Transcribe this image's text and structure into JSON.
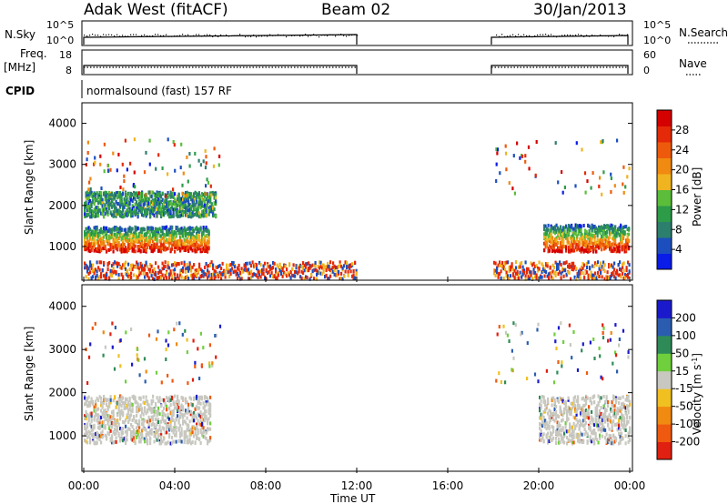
{
  "header": {
    "station": "Adak West (fitACF)",
    "beam": "Beam 02",
    "date": "30/Jan/2013"
  },
  "panels": {
    "nsky": {
      "left_label": "N.Sky",
      "right_label": "N.Search",
      "left_ticks": [
        "10^5",
        "10^0"
      ],
      "right_ticks": [
        "10^5",
        "10^0"
      ]
    },
    "freq": {
      "left_label_line1": "Freq.",
      "left_label_line2": "[MHz]",
      "right_label": "Nave",
      "left_ticks": [
        "18",
        "8"
      ],
      "right_ticks": [
        "60",
        "0"
      ]
    },
    "cpid": {
      "label": "CPID",
      "value": "normalsound (fast) 157 RF"
    }
  },
  "chart_data": [
    {
      "type": "heatmap",
      "title": "",
      "xlabel": "",
      "ylabel": "Slant Range [km]",
      "yticks": [
        "1000",
        "2000",
        "3000",
        "4000"
      ],
      "ylim": [
        180,
        4500
      ],
      "xlim": [
        0,
        24
      ],
      "data_gap_hours": [
        12,
        18
      ],
      "colorbar": {
        "label": "Power [dB]",
        "ticks": [
          "4",
          "8",
          "12",
          "16",
          "20",
          "24",
          "28"
        ],
        "colors": [
          "#0a1ce8",
          "#1c4fbd",
          "#2d7f6d",
          "#2d9c49",
          "#5bbd3a",
          "#f0b420",
          "#f08a10",
          "#ee5a0c",
          "#e42a08",
          "#d50000"
        ]
      },
      "features": [
        {
          "name": "main echo band",
          "hours": [
            0,
            5.5
          ],
          "range_km": [
            850,
            1450
          ],
          "peak_db": 28
        },
        {
          "name": "upper echo band",
          "hours": [
            0,
            5.8
          ],
          "range_km": [
            1700,
            2300
          ],
          "peak_db": 10
        },
        {
          "name": "recovery band",
          "hours": [
            20.2,
            24
          ],
          "range_km": [
            850,
            1500
          ],
          "peak_db": 24
        },
        {
          "name": "near-range clutter",
          "hours": [
            0,
            12
          ],
          "range_km": [
            180,
            600
          ],
          "peak_db": 16
        },
        {
          "name": "near-range clutter",
          "hours": [
            18,
            24
          ],
          "range_km": [
            180,
            600
          ],
          "peak_db": 16
        }
      ]
    },
    {
      "type": "heatmap",
      "title": "",
      "xlabel": "Time UT",
      "ylabel": "Slant Range [km]",
      "xticks": [
        "00:00",
        "04:00",
        "08:00",
        "12:00",
        "16:00",
        "20:00",
        "00:00"
      ],
      "yticks": [
        "1000",
        "2000",
        "3000",
        "4000"
      ],
      "ylim": [
        180,
        4500
      ],
      "xlim": [
        0,
        24
      ],
      "data_gap_hours": [
        12,
        18
      ],
      "colorbar": {
        "label_prefix": "Velocity [m s",
        "label_sup": "-1",
        "label_suffix": "]",
        "ticks": [
          "200",
          "100",
          "50",
          "15",
          "-15",
          "-50",
          "-100",
          "-200"
        ],
        "colors": [
          "#1a1acc",
          "#2a5db0",
          "#2e8b57",
          "#6fcf3d",
          "#c8c8c0",
          "#f0c020",
          "#f08a10",
          "#f05a10",
          "#e02010"
        ]
      },
      "features": [
        {
          "name": "ground scatter",
          "hours": [
            0,
            5.6
          ],
          "range_km": [
            800,
            1900
          ],
          "velocity": "-15..15"
        },
        {
          "name": "ground scatter",
          "hours": [
            20,
            24
          ],
          "range_km": [
            800,
            1900
          ],
          "velocity": "-15..15"
        }
      ]
    }
  ]
}
